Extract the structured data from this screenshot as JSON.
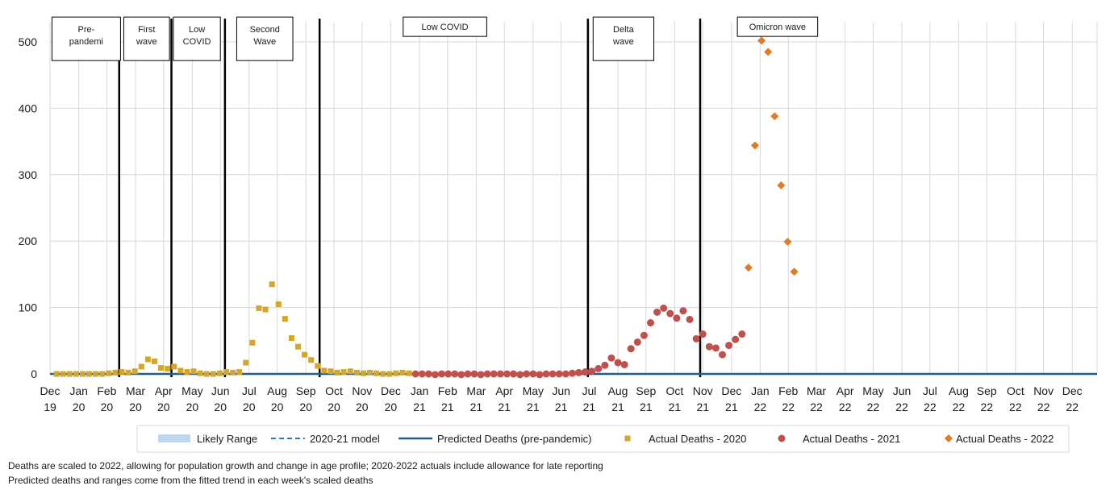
{
  "chart_data": {
    "type": "scatter",
    "title": "",
    "xlabel": "",
    "ylabel": "",
    "ylim": [
      0,
      530
    ],
    "yticks": [
      0,
      100,
      200,
      300,
      400,
      500
    ],
    "grid": true,
    "legend_position": "bottom",
    "x_unit": "weeks since start of Dec 2019",
    "xlim": [
      0,
      160.4
    ],
    "month_ticks": [
      {
        "month": "Dec",
        "year": "19",
        "week": 0
      },
      {
        "month": "Jan",
        "year": "20",
        "week": 4.4
      },
      {
        "month": "Feb",
        "year": "20",
        "week": 8.7
      },
      {
        "month": "Mar",
        "year": "20",
        "week": 13.1
      },
      {
        "month": "Apr",
        "year": "20",
        "week": 17.4
      },
      {
        "month": "May",
        "year": "20",
        "week": 21.8
      },
      {
        "month": "Jun",
        "year": "20",
        "week": 26.1
      },
      {
        "month": "Jul",
        "year": "20",
        "week": 30.5
      },
      {
        "month": "Aug",
        "year": "20",
        "week": 34.8
      },
      {
        "month": "Sep",
        "year": "20",
        "week": 39.2
      },
      {
        "month": "Oct",
        "year": "20",
        "week": 43.5
      },
      {
        "month": "Nov",
        "year": "20",
        "week": 47.8
      },
      {
        "month": "Dec",
        "year": "20",
        "week": 52.2
      },
      {
        "month": "Jan",
        "year": "21",
        "week": 56.6
      },
      {
        "month": "Feb",
        "year": "21",
        "week": 60.9
      },
      {
        "month": "Mar",
        "year": "21",
        "week": 65.3
      },
      {
        "month": "Apr",
        "year": "21",
        "week": 69.6
      },
      {
        "month": "May",
        "year": "21",
        "week": 74.0
      },
      {
        "month": "Jun",
        "year": "21",
        "week": 78.3
      },
      {
        "month": "Jul",
        "year": "21",
        "week": 82.6
      },
      {
        "month": "Aug",
        "year": "21",
        "week": 87.0
      },
      {
        "month": "Sep",
        "year": "21",
        "week": 91.3
      },
      {
        "month": "Oct",
        "year": "21",
        "week": 95.7
      },
      {
        "month": "Nov",
        "year": "21",
        "week": 100.0
      },
      {
        "month": "Dec",
        "year": "21",
        "week": 104.4
      },
      {
        "month": "Jan",
        "year": "22",
        "week": 108.8
      },
      {
        "month": "Feb",
        "year": "22",
        "week": 113.1
      },
      {
        "month": "Mar",
        "year": "22",
        "week": 117.4
      },
      {
        "month": "Apr",
        "year": "22",
        "week": 121.8
      },
      {
        "month": "May",
        "year": "22",
        "week": 126.1
      },
      {
        "month": "Jun",
        "year": "22",
        "week": 130.5
      },
      {
        "month": "Jul",
        "year": "22",
        "week": 134.8
      },
      {
        "month": "Aug",
        "year": "22",
        "week": 139.2
      },
      {
        "month": "Sep",
        "year": "22",
        "week": 143.5
      },
      {
        "month": "Oct",
        "year": "22",
        "week": 147.9
      },
      {
        "month": "Nov",
        "year": "22",
        "week": 152.2
      },
      {
        "month": "Dec",
        "year": "22",
        "week": 156.6
      }
    ],
    "phases": [
      {
        "label": "Pre-pandemi",
        "start": 0.3,
        "end": 10.8,
        "box_top": 500,
        "box_bottom": 480
      },
      {
        "label": "First wave",
        "start": 11.3,
        "end": 18.3,
        "box_top": 500,
        "box_bottom": 480
      },
      {
        "label": "Low COVID",
        "start": 18.9,
        "end": 26.1,
        "box_top": 500,
        "box_bottom": 480
      },
      {
        "label": "Second Wave",
        "start": 28.6,
        "end": 37.2,
        "box_top": 500,
        "box_bottom": 480
      },
      {
        "label": "Low COVID",
        "start": 54.1,
        "end": 66.9,
        "box_top": 500,
        "box_bottom": 511
      },
      {
        "label": "Delta wave",
        "start": 83.2,
        "end": 92.5,
        "box_top": 500,
        "box_bottom": 479
      },
      {
        "label": "Omicron wave",
        "start": 105.3,
        "end": 117.6,
        "box_top": 500,
        "box_bottom": 511
      }
    ],
    "phase_lines": [
      10.6,
      18.6,
      26.8,
      41.3,
      82.4,
      99.6
    ],
    "series": [
      {
        "name": "Likely Range",
        "kind": "band",
        "color": "#bdd7ee",
        "values": []
      },
      {
        "name": "2020-21 model",
        "kind": "dashed-line",
        "color": "#2e75b6",
        "values": []
      },
      {
        "name": "Predicted Deaths (pre-pandemic)",
        "kind": "line",
        "color": "#1f5f8b",
        "points": [
          [
            0,
            0
          ],
          [
            160.4,
            0
          ]
        ]
      },
      {
        "name": "Actual Deaths - 2020",
        "kind": "square",
        "color": "#d4a62a",
        "points": [
          [
            1,
            0
          ],
          [
            2,
            0
          ],
          [
            3,
            0
          ],
          [
            4,
            0
          ],
          [
            5,
            0
          ],
          [
            6,
            0
          ],
          [
            7,
            0
          ],
          [
            8,
            0
          ],
          [
            9,
            1
          ],
          [
            10,
            2
          ],
          [
            11,
            3
          ],
          [
            12,
            2
          ],
          [
            13,
            4
          ],
          [
            14,
            11
          ],
          [
            15,
            22
          ],
          [
            16,
            19
          ],
          [
            17,
            9
          ],
          [
            18,
            8
          ],
          [
            19,
            11
          ],
          [
            20,
            5
          ],
          [
            21,
            3
          ],
          [
            22,
            4
          ],
          [
            23,
            1
          ],
          [
            24,
            0
          ],
          [
            25,
            0
          ],
          [
            26,
            1
          ],
          [
            27,
            3
          ],
          [
            28,
            2
          ],
          [
            29,
            3
          ],
          [
            30,
            17
          ],
          [
            31,
            47
          ],
          [
            32,
            99
          ],
          [
            33,
            97
          ],
          [
            34,
            135
          ],
          [
            35,
            105
          ],
          [
            36,
            83
          ],
          [
            37,
            54
          ],
          [
            38,
            41
          ],
          [
            39,
            29
          ],
          [
            40,
            21
          ],
          [
            41,
            12
          ],
          [
            42,
            5
          ],
          [
            43,
            4
          ],
          [
            44,
            2
          ],
          [
            45,
            3
          ],
          [
            46,
            4
          ],
          [
            47,
            2
          ],
          [
            48,
            1
          ],
          [
            49,
            2
          ],
          [
            50,
            1
          ],
          [
            51,
            0
          ],
          [
            52,
            0
          ],
          [
            53,
            1
          ],
          [
            54,
            2
          ],
          [
            55,
            1
          ]
        ]
      },
      {
        "name": "Actual Deaths - 2021",
        "kind": "circle",
        "color": "#c0504d",
        "points": [
          [
            56,
            0
          ],
          [
            57,
            0
          ],
          [
            58,
            0
          ],
          [
            59,
            -1
          ],
          [
            60,
            0
          ],
          [
            61,
            0
          ],
          [
            62,
            0
          ],
          [
            63,
            -1
          ],
          [
            64,
            0
          ],
          [
            65,
            0
          ],
          [
            66,
            -1
          ],
          [
            67,
            0
          ],
          [
            68,
            0
          ],
          [
            69,
            0
          ],
          [
            70,
            0
          ],
          [
            71,
            0
          ],
          [
            72,
            -1
          ],
          [
            73,
            0
          ],
          [
            74,
            0
          ],
          [
            75,
            -1
          ],
          [
            76,
            0
          ],
          [
            77,
            0
          ],
          [
            78,
            0
          ],
          [
            79,
            0
          ],
          [
            80,
            1
          ],
          [
            81,
            2
          ],
          [
            82,
            3
          ],
          [
            83,
            4
          ],
          [
            84,
            8
          ],
          [
            85,
            13
          ],
          [
            86,
            24
          ],
          [
            87,
            17
          ],
          [
            88,
            14
          ],
          [
            89,
            38
          ],
          [
            90,
            48
          ],
          [
            91,
            58
          ],
          [
            92,
            77
          ],
          [
            93,
            93
          ],
          [
            94,
            99
          ],
          [
            95,
            91
          ],
          [
            96,
            84
          ],
          [
            97,
            95
          ],
          [
            98,
            82
          ],
          [
            99,
            53
          ],
          [
            100,
            60
          ],
          [
            101,
            41
          ],
          [
            102,
            39
          ],
          [
            103,
            29
          ],
          [
            104,
            43
          ],
          [
            105,
            52
          ],
          [
            106,
            60
          ]
        ]
      },
      {
        "name": "Actual Deaths - 2022",
        "kind": "diamond",
        "color": "#e07b28",
        "points": [
          [
            107,
            160
          ],
          [
            108,
            344
          ],
          [
            109,
            502
          ],
          [
            110,
            485
          ],
          [
            111,
            388
          ],
          [
            112,
            284
          ],
          [
            113,
            199
          ],
          [
            114,
            154
          ]
        ]
      }
    ]
  },
  "footnotes": [
    "Deaths are scaled to 2022,  allowing for population growth and change in age profile; 2020-2022  actuals include allowance for late reporting",
    "Predicted deaths and ranges come from the fitted trend in each week's scaled deaths"
  ]
}
